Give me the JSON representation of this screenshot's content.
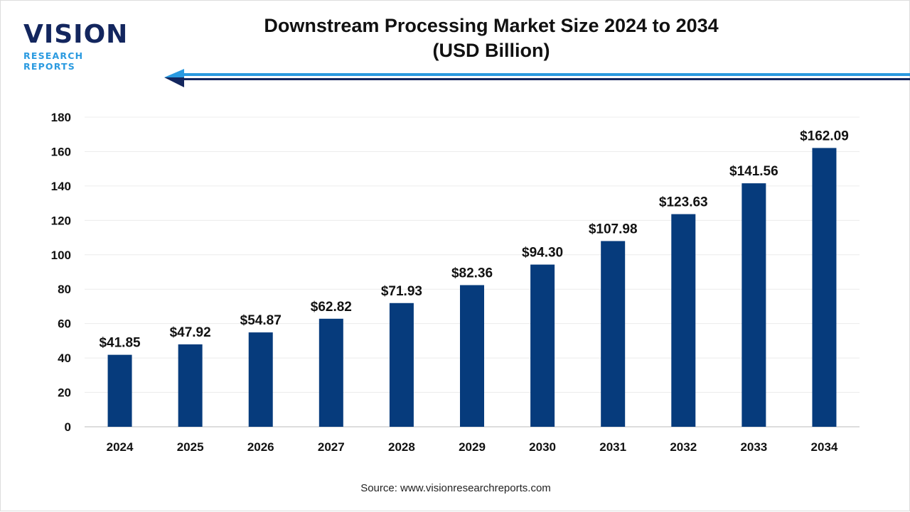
{
  "logo": {
    "main": "VISION",
    "sub": "RESEARCH REPORTS"
  },
  "title_line1": "Downstream Processing Market Size 2024 to 2034",
  "title_line2": "(USD Billion)",
  "source": "Source: www.visionresearchreports.com",
  "colors": {
    "bar": "#063b7c",
    "accent_blue": "#2a9ae0",
    "navy": "#13265e"
  },
  "chart_data": {
    "type": "bar",
    "title": "Downstream Processing Market Size 2024 to 2034 (USD Billion)",
    "categories": [
      "2024",
      "2025",
      "2026",
      "2027",
      "2028",
      "2029",
      "2030",
      "2031",
      "2032",
      "2033",
      "2034"
    ],
    "values": [
      41.85,
      47.92,
      54.87,
      62.82,
      71.93,
      82.36,
      94.3,
      107.98,
      123.63,
      141.56,
      162.09
    ],
    "data_labels": [
      "$41.85",
      "$47.92",
      "$54.87",
      "$62.82",
      "$71.93",
      "$82.36",
      "$94.30",
      "$107.98",
      "$123.63",
      "$141.56",
      "$162.09"
    ],
    "ylim": [
      0,
      180
    ],
    "yticks": [
      0,
      20,
      40,
      60,
      80,
      100,
      120,
      140,
      160,
      180
    ],
    "xlabel": "",
    "ylabel": "",
    "grid": true,
    "legend": "none"
  }
}
